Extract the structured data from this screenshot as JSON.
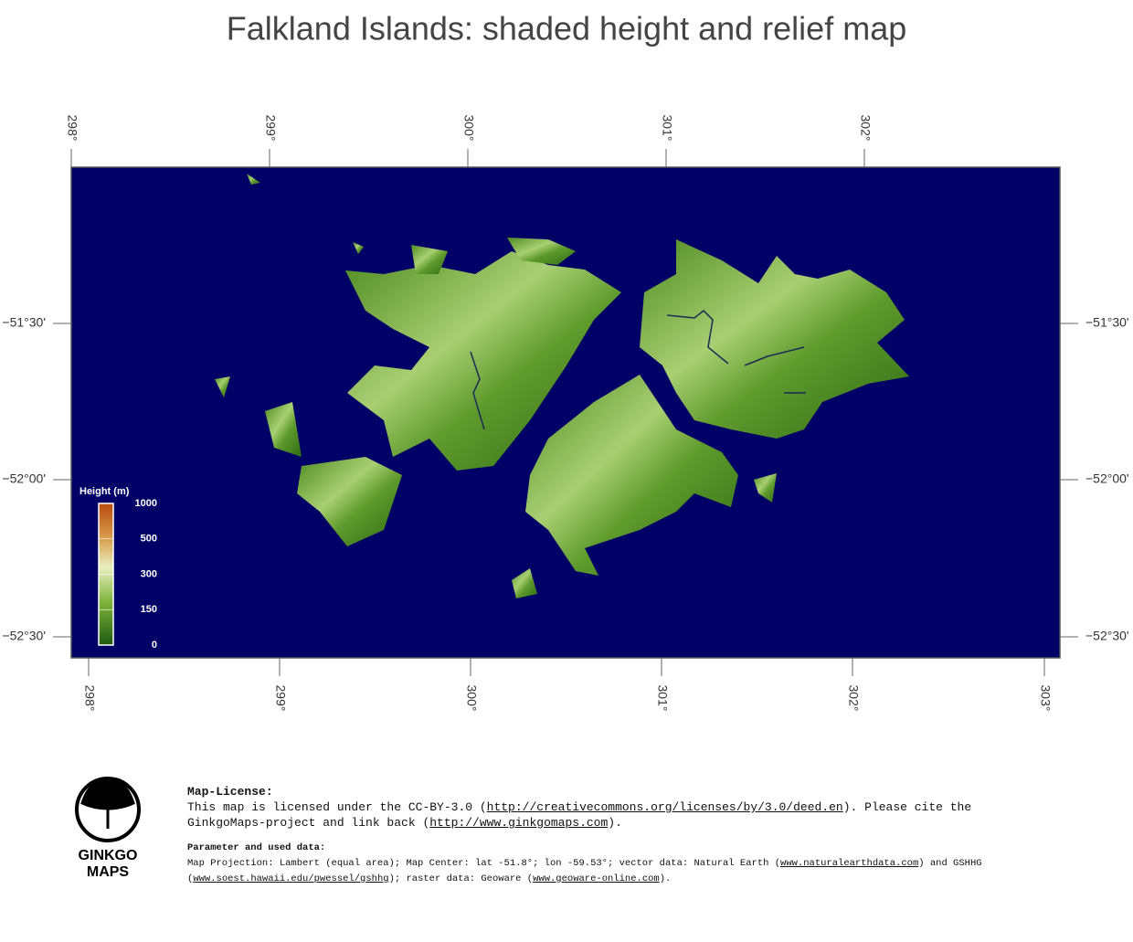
{
  "title": "Falkland Islands: shaded height and relief map",
  "axes": {
    "top": [
      "298°",
      "299°",
      "300°",
      "301°",
      "302°"
    ],
    "bottom": [
      "298°",
      "299°",
      "300°",
      "301°",
      "302°",
      "303°"
    ],
    "left": [
      "−51°30'",
      "−52°00'",
      "−52°30'"
    ],
    "right": [
      "−51°30'",
      "−52°00'",
      "−52°30'"
    ]
  },
  "legend": {
    "title": "Height  (m)",
    "ticks": [
      1000,
      500,
      300,
      150,
      0
    ]
  },
  "logo": {
    "line1": "GINKGO",
    "line2": "MAPS"
  },
  "license": {
    "heading": "Map-License:",
    "parts": [
      "This map is licensed under the CC-BY-3.0 (",
      "http://creativecommons.org/licenses/by/3.0/deed.en",
      ").  Please cite the GinkgoMaps-project and link back (",
      "http://www.ginkgomaps.com",
      ")."
    ]
  },
  "parameters": {
    "heading": "Parameter and used data:",
    "parts": [
      "Map Projection: Lambert (equal area); Map Center: lat -51.8°; lon -59.53°; vector data: Natural Earth (",
      "www.naturalearthdata.com",
      ") and GSHHG (",
      "www.soest.hawaii.edu/pwessel/gshhg",
      "); raster data: Geoware (",
      "www.geoware-online.com",
      ")."
    ]
  }
}
